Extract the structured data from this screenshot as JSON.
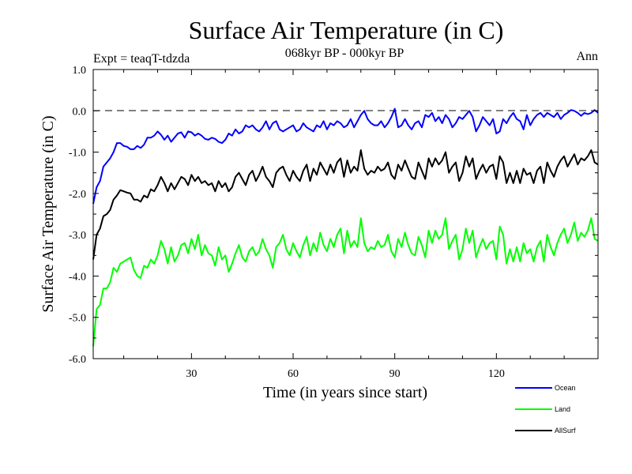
{
  "chart_data": {
    "type": "line",
    "title": "Surface Air Temperature (in C)",
    "subtitle": "068kyr BP - 000kyr BP",
    "experiment": "Expt = teaqT-tdzda",
    "period": "Ann",
    "xlabel": "Time (in years since start)",
    "ylabel": "Surface Air Temperature (in C)",
    "xlim": [
      1,
      150
    ],
    "ylim": [
      -6.0,
      1.0
    ],
    "xticks": [
      30,
      60,
      90,
      120
    ],
    "xtick_labels": [
      "30",
      "60",
      "90",
      "120"
    ],
    "yticks": [
      1.0,
      0.0,
      -1.0,
      -2.0,
      -3.0,
      -4.0,
      -5.0,
      -6.0
    ],
    "ytick_labels": [
      "1.0",
      "0.0",
      "-1.0",
      "-2.0",
      "-3.0",
      "-4.0",
      "-5.0",
      "-6.0"
    ],
    "reference_line": 0.0,
    "legend_position": "bottom-right, below plot",
    "series": [
      {
        "name": "Ocean",
        "color": "#0000ff",
        "values": [
          -2.25,
          -1.85,
          -1.7,
          -1.35,
          -1.25,
          -1.15,
          -1.0,
          -0.78,
          -0.78,
          -0.85,
          -0.87,
          -0.93,
          -0.93,
          -0.85,
          -0.9,
          -0.82,
          -0.65,
          -0.65,
          -0.6,
          -0.5,
          -0.58,
          -0.7,
          -0.6,
          -0.75,
          -0.65,
          -0.55,
          -0.52,
          -0.65,
          -0.5,
          -0.52,
          -0.6,
          -0.55,
          -0.6,
          -0.68,
          -0.7,
          -0.65,
          -0.68,
          -0.75,
          -0.78,
          -0.7,
          -0.55,
          -0.6,
          -0.45,
          -0.55,
          -0.5,
          -0.35,
          -0.4,
          -0.35,
          -0.45,
          -0.5,
          -0.4,
          -0.25,
          -0.45,
          -0.3,
          -0.25,
          -0.45,
          -0.5,
          -0.45,
          -0.4,
          -0.35,
          -0.5,
          -0.45,
          -0.3,
          -0.4,
          -0.45,
          -0.5,
          -0.35,
          -0.4,
          -0.25,
          -0.45,
          -0.3,
          -0.35,
          -0.25,
          -0.3,
          -0.4,
          -0.35,
          -0.2,
          -0.4,
          -0.25,
          -0.1,
          0.0,
          -0.2,
          -0.3,
          -0.35,
          -0.35,
          -0.25,
          -0.4,
          -0.3,
          -0.15,
          0.05,
          -0.4,
          -0.35,
          -0.2,
          -0.35,
          -0.45,
          -0.3,
          -0.25,
          -0.4,
          -0.1,
          -0.15,
          -0.05,
          -0.25,
          -0.15,
          -0.3,
          -0.1,
          -0.2,
          -0.4,
          -0.3,
          -0.15,
          -0.2,
          -0.1,
          0.0,
          -0.15,
          -0.5,
          -0.35,
          -0.15,
          -0.25,
          -0.35,
          -0.2,
          -0.55,
          -0.5,
          -0.2,
          -0.3,
          -0.15,
          -0.05,
          -0.2,
          -0.25,
          -0.45,
          -0.1,
          -0.35,
          -0.2,
          -0.1,
          -0.05,
          -0.15,
          -0.05,
          -0.1,
          -0.15,
          -0.05,
          -0.2,
          -0.1,
          -0.05,
          0.02,
          0.0,
          -0.05,
          -0.12,
          -0.05,
          -0.08,
          -0.05,
          0.02,
          -0.05
        ]
      },
      {
        "name": "Land",
        "color": "#00ff00",
        "values": [
          -5.7,
          -4.8,
          -4.7,
          -4.3,
          -4.3,
          -4.15,
          -3.8,
          -3.9,
          -3.7,
          -3.65,
          -3.6,
          -3.55,
          -3.85,
          -4.0,
          -4.05,
          -3.75,
          -3.8,
          -3.6,
          -3.7,
          -3.5,
          -3.15,
          -3.35,
          -3.7,
          -3.3,
          -3.65,
          -3.5,
          -3.25,
          -3.2,
          -3.45,
          -3.1,
          -3.35,
          -3.0,
          -3.5,
          -3.25,
          -3.45,
          -3.5,
          -3.75,
          -3.3,
          -3.6,
          -3.5,
          -3.9,
          -3.7,
          -3.45,
          -3.25,
          -3.55,
          -3.65,
          -3.4,
          -3.3,
          -3.5,
          -3.4,
          -3.1,
          -3.35,
          -3.5,
          -3.8,
          -3.3,
          -3.2,
          -3.0,
          -3.35,
          -3.5,
          -3.2,
          -3.4,
          -3.55,
          -3.25,
          -3.05,
          -3.5,
          -3.2,
          -3.4,
          -2.95,
          -3.25,
          -3.4,
          -3.1,
          -3.3,
          -3.0,
          -2.85,
          -3.45,
          -2.9,
          -3.3,
          -3.15,
          -3.3,
          -2.6,
          -3.2,
          -3.4,
          -3.3,
          -3.35,
          -3.15,
          -3.3,
          -3.25,
          -3.0,
          -3.4,
          -3.55,
          -3.1,
          -3.3,
          -2.95,
          -3.25,
          -3.45,
          -3.5,
          -3.05,
          -3.25,
          -3.55,
          -2.9,
          -3.2,
          -2.9,
          -3.1,
          -3.0,
          -2.6,
          -3.35,
          -3.15,
          -3.0,
          -3.6,
          -3.35,
          -2.85,
          -3.2,
          -2.9,
          -3.55,
          -3.3,
          -3.1,
          -3.35,
          -3.2,
          -3.15,
          -3.6,
          -2.8,
          -3.0,
          -3.7,
          -3.35,
          -3.65,
          -3.3,
          -3.65,
          -3.2,
          -3.45,
          -3.35,
          -3.65,
          -3.3,
          -3.15,
          -3.65,
          -3.0,
          -3.3,
          -3.5,
          -3.2,
          -3.0,
          -2.85,
          -3.2,
          -3.0,
          -2.7,
          -3.15,
          -2.95,
          -3.05,
          -2.9,
          -2.6,
          -3.1,
          -3.15
        ]
      },
      {
        "name": "AllSurf",
        "color": "#000000",
        "values": [
          -3.6,
          -3.0,
          -2.85,
          -2.55,
          -2.5,
          -2.4,
          -2.15,
          -2.05,
          -1.92,
          -1.95,
          -1.98,
          -2.0,
          -2.15,
          -2.15,
          -2.2,
          -2.05,
          -2.1,
          -1.9,
          -1.95,
          -1.8,
          -1.6,
          -1.75,
          -1.95,
          -1.75,
          -1.9,
          -1.75,
          -1.6,
          -1.65,
          -1.8,
          -1.55,
          -1.7,
          -1.6,
          -1.75,
          -1.7,
          -1.8,
          -1.75,
          -1.95,
          -1.7,
          -1.85,
          -1.75,
          -1.95,
          -1.85,
          -1.6,
          -1.5,
          -1.65,
          -1.8,
          -1.55,
          -1.45,
          -1.7,
          -1.55,
          -1.35,
          -1.6,
          -1.7,
          -1.85,
          -1.5,
          -1.4,
          -1.35,
          -1.55,
          -1.7,
          -1.45,
          -1.6,
          -1.7,
          -1.45,
          -1.3,
          -1.7,
          -1.4,
          -1.55,
          -1.25,
          -1.4,
          -1.55,
          -1.3,
          -1.5,
          -1.25,
          -1.15,
          -1.6,
          -1.2,
          -1.5,
          -1.35,
          -1.45,
          -0.95,
          -1.4,
          -1.55,
          -1.45,
          -1.5,
          -1.35,
          -1.45,
          -1.4,
          -1.25,
          -1.55,
          -1.65,
          -1.3,
          -1.45,
          -1.2,
          -1.4,
          -1.6,
          -1.65,
          -1.25,
          -1.45,
          -1.65,
          -1.15,
          -1.35,
          -1.15,
          -1.3,
          -1.2,
          -1.0,
          -1.5,
          -1.35,
          -1.25,
          -1.7,
          -1.5,
          -1.1,
          -1.35,
          -1.15,
          -1.65,
          -1.45,
          -1.3,
          -1.5,
          -1.35,
          -1.3,
          -1.65,
          -1.1,
          -1.25,
          -1.75,
          -1.5,
          -1.75,
          -1.45,
          -1.75,
          -1.4,
          -1.55,
          -1.5,
          -1.75,
          -1.45,
          -1.35,
          -1.75,
          -1.25,
          -1.45,
          -1.6,
          -1.35,
          -1.2,
          -1.1,
          -1.35,
          -1.2,
          -1.05,
          -1.3,
          -1.15,
          -1.2,
          -1.1,
          -0.95,
          -1.25,
          -1.3
        ]
      }
    ]
  }
}
